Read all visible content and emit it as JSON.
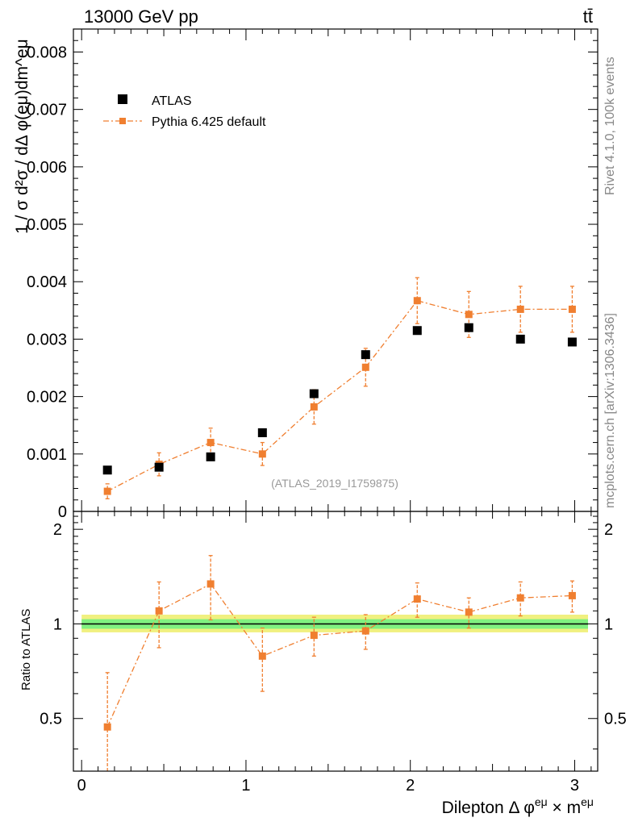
{
  "header": {
    "energy_label": "13000 GeV pp",
    "process_label": "tt̄"
  },
  "side_labels": {
    "rivet": "Rivet 4.1.0,  100k events",
    "mcplots": "mcplots.cern.ch [arXiv:1306.3436]"
  },
  "chart_data": [
    {
      "type": "scatter",
      "panel": "main",
      "ylabel": "1 / σ  d²σ / dΔ φ(eμ)dm^eμ",
      "ylim": [
        0,
        0.0084
      ],
      "yticks": [
        0,
        0.001,
        0.002,
        0.003,
        0.004,
        0.005,
        0.006,
        0.007,
        0.008
      ],
      "ytick_labels": [
        "0",
        "0.001",
        "0.002",
        "0.003",
        "0.004",
        "0.005",
        "0.006",
        "0.007",
        "0.008"
      ],
      "xlim": [
        -0.05,
        3.14
      ],
      "watermark": "(ATLAS_2019_I1759875)",
      "legend_position": "top-left",
      "series": [
        {
          "name": "ATLAS",
          "color": "#000000",
          "marker": "square",
          "x": [
            0.157,
            0.471,
            0.785,
            1.1,
            1.414,
            1.728,
            2.042,
            2.356,
            2.67,
            2.985
          ],
          "y": [
            0.00072,
            0.00077,
            0.00095,
            0.00137,
            0.00205,
            0.00273,
            0.00315,
            0.0032,
            0.003,
            0.00295
          ],
          "yerr": [
            0,
            0,
            0,
            0,
            0,
            0,
            0,
            0,
            0,
            0
          ]
        },
        {
          "name": "Pythia 6.425 default",
          "color": "#f07f30",
          "marker": "square",
          "line": "dash-dot",
          "x": [
            0.157,
            0.471,
            0.785,
            1.1,
            1.414,
            1.728,
            2.042,
            2.356,
            2.67,
            2.985
          ],
          "y": [
            0.00035,
            0.00082,
            0.0012,
            0.001,
            0.00182,
            0.00251,
            0.00367,
            0.00343,
            0.00352,
            0.00352
          ],
          "yerr": [
            0.00013,
            0.0002,
            0.00025,
            0.0002,
            0.0003,
            0.00033,
            0.0004,
            0.0004,
            0.0004,
            0.0004
          ]
        }
      ]
    },
    {
      "type": "scatter",
      "panel": "ratio",
      "ylabel": "Ratio to ATLAS",
      "xlabel": "Dilepton Δ φ^eμ × m^eμ",
      "ylim": [
        0.34,
        2.28
      ],
      "yticks": [
        0.5,
        1,
        2
      ],
      "ytick_labels": [
        "0.5",
        "1",
        "2"
      ],
      "xlim": [
        -0.05,
        3.14
      ],
      "xticks": [
        0,
        1,
        2,
        3
      ],
      "xtick_labels": [
        "0",
        "1",
        "2",
        "3"
      ],
      "reference_band_inner_color": "#80f080",
      "reference_band_outer_color": "#f0f080",
      "series": [
        {
          "name": "Pythia 6.425 default / ATLAS",
          "color": "#f07f30",
          "x": [
            0.157,
            0.471,
            0.785,
            1.1,
            1.414,
            1.728,
            2.042,
            2.356,
            2.67,
            2.985
          ],
          "y": [
            0.47,
            1.1,
            1.34,
            0.79,
            0.92,
            0.95,
            1.2,
            1.09,
            1.21,
            1.23
          ],
          "yerr": [
            0.23,
            0.26,
            0.31,
            0.18,
            0.13,
            0.12,
            0.15,
            0.12,
            0.15,
            0.14
          ]
        }
      ]
    }
  ]
}
